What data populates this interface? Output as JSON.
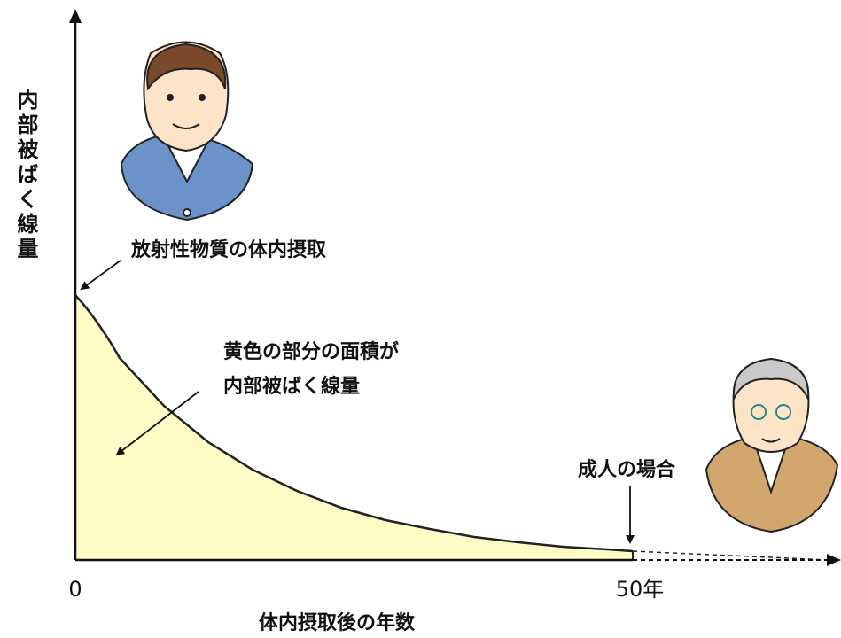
{
  "y_axis_label": "内部被ばく線量",
  "x_axis_label": "体内摂取後の年数",
  "x_ticks": [
    "0",
    "50年"
  ],
  "annotations": {
    "intake": "放射性物質の体内摂取",
    "area": [
      "黄色の部分の面積が",
      "内部被ばく線量"
    ],
    "adult": "成人の場合"
  }
}
